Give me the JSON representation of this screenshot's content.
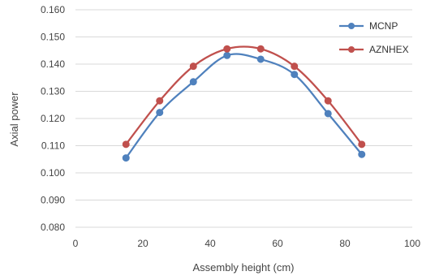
{
  "chart_data": {
    "type": "line",
    "title": "",
    "xlabel": "Assembly height (cm)",
    "ylabel": "Axial power",
    "xlim": [
      0,
      100
    ],
    "ylim": [
      0.08,
      0.16
    ],
    "x_ticks": [
      "0",
      "20",
      "40",
      "60",
      "80",
      "100"
    ],
    "y_ticks": [
      "0.080",
      "0.090",
      "0.100",
      "0.110",
      "0.120",
      "0.130",
      "0.140",
      "0.150",
      "0.160"
    ],
    "grid": "horizontal",
    "legend_position": "top-right",
    "smooth": true,
    "x": [
      15,
      25,
      35,
      45,
      55,
      65,
      75,
      85
    ],
    "series": [
      {
        "name": "MCNP",
        "color": "#4f81bd",
        "marker": "circle",
        "values": [
          0.1055,
          0.1222,
          0.1335,
          0.1432,
          0.1418,
          0.1362,
          0.1218,
          0.1068
        ]
      },
      {
        "name": "AZNHEX",
        "color": "#c0504d",
        "marker": "circle",
        "values": [
          0.1105,
          0.1265,
          0.1392,
          0.1456,
          0.1456,
          0.1392,
          0.1265,
          0.1105
        ]
      }
    ]
  }
}
